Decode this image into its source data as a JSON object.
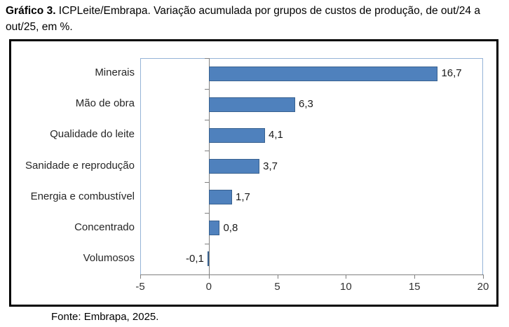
{
  "figure": {
    "title_bold": "Gráfico 3.",
    "title_rest": " ICPLeite/Embrapa. Variação acumulada por grupos de custos de produção, de out/24 a out/25, em %.",
    "source": "Fonte: Embrapa, 2025."
  },
  "chart_data": {
    "type": "bar",
    "orientation": "horizontal",
    "title": "Gráfico 3. ICPLeite/Embrapa. Variação acumulada por grupos de custos de produção, de out/24 a out/25, em %.",
    "categories": [
      "Minerais",
      "Mão de obra",
      "Qualidade do leite",
      "Sanidade e reprodução",
      "Energia e combustível",
      "Concentrado",
      "Volumosos"
    ],
    "values": [
      16.7,
      6.3,
      4.1,
      3.7,
      1.7,
      0.8,
      -0.1
    ],
    "value_labels": [
      "16,7",
      "6,3",
      "4,1",
      "3,7",
      "1,7",
      "0,8",
      "-0,1"
    ],
    "xlim": [
      -5,
      20
    ],
    "xticks": [
      -5,
      0,
      5,
      10,
      15,
      20
    ],
    "xtick_labels": [
      "-5",
      "0",
      "5",
      "10",
      "15",
      "20"
    ],
    "grid": false,
    "legend": false,
    "bar_color": "#4f81bd",
    "bar_border_color": "#38618f",
    "plot_border_color": "#95b3d7",
    "axis_color": "#808080"
  }
}
